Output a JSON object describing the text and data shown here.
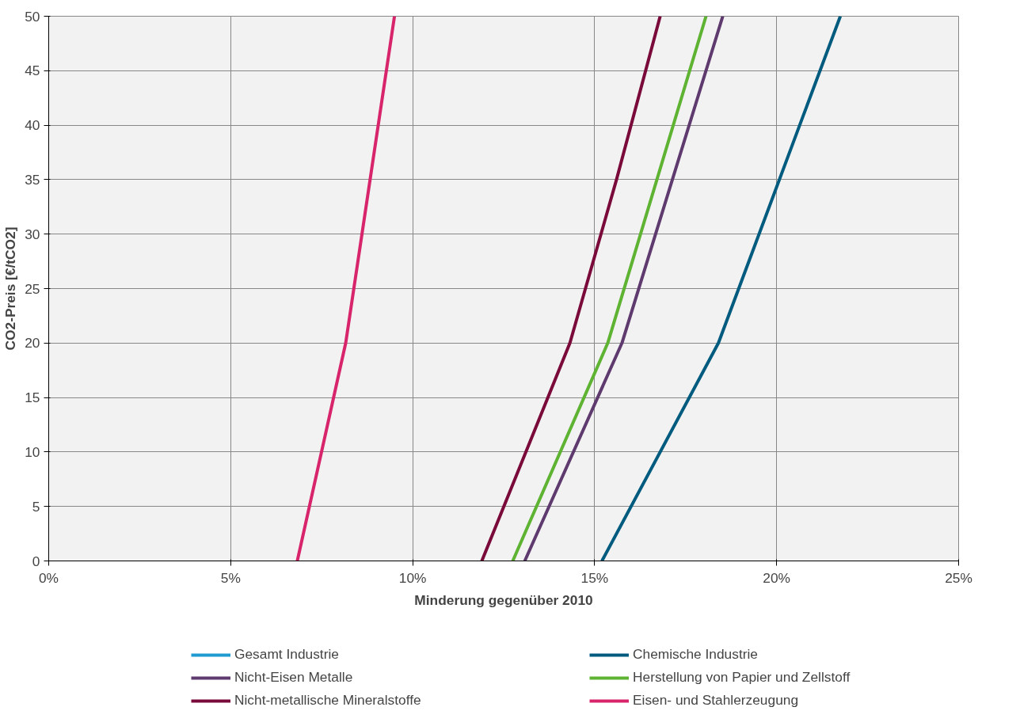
{
  "chart_data": {
    "type": "line",
    "xlabel": "Minderung gegenüber 2010",
    "ylabel": "CO2-Preis [€/tCO2]",
    "xlim": [
      0,
      25
    ],
    "xticks": [
      {
        "value": 0,
        "label": "0%"
      },
      {
        "value": 5,
        "label": "5%"
      },
      {
        "value": 10,
        "label": "10%"
      },
      {
        "value": 15,
        "label": "15%"
      },
      {
        "value": 20,
        "label": "20%"
      },
      {
        "value": 25,
        "label": "25%"
      }
    ],
    "ylim": [
      0,
      50
    ],
    "yticks": [
      0,
      5,
      10,
      15,
      20,
      25,
      30,
      35,
      40,
      45,
      50
    ],
    "grid": true,
    "legend": "bottom",
    "line_style": "solid",
    "series": [
      {
        "name": "Gesamt Industrie",
        "color": "#1f9bd1",
        "x": [
          null,
          null,
          null
        ],
        "values": [
          null,
          null,
          null
        ]
      },
      {
        "name": "Chemische Industrie",
        "color": "#005b7f",
        "x": [
          15.2,
          18.4,
          21.75
        ],
        "values": [
          0,
          20,
          50
        ]
      },
      {
        "name": "Nicht-Eisen Metalle",
        "color": "#5e3a6e",
        "x": [
          13.08,
          15.75,
          18.52
        ],
        "values": [
          0,
          20,
          50
        ]
      },
      {
        "name": "Herstellung von Papier und Zellstoff",
        "color": "#5fb332",
        "x": [
          12.75,
          15.36,
          18.06
        ],
        "values": [
          0,
          20,
          50
        ]
      },
      {
        "name": "Nicht-metallische Mineralstoffe",
        "color": "#7a0a3a",
        "x": [
          11.9,
          14.32,
          15.6,
          16.8
        ],
        "values": [
          0,
          20,
          35,
          50
        ]
      },
      {
        "name": "Eisen- und Stahlerzeugung",
        "color": "#d8246a",
        "x": [
          6.83,
          8.16,
          9.5
        ],
        "values": [
          0,
          20,
          50
        ]
      }
    ]
  }
}
